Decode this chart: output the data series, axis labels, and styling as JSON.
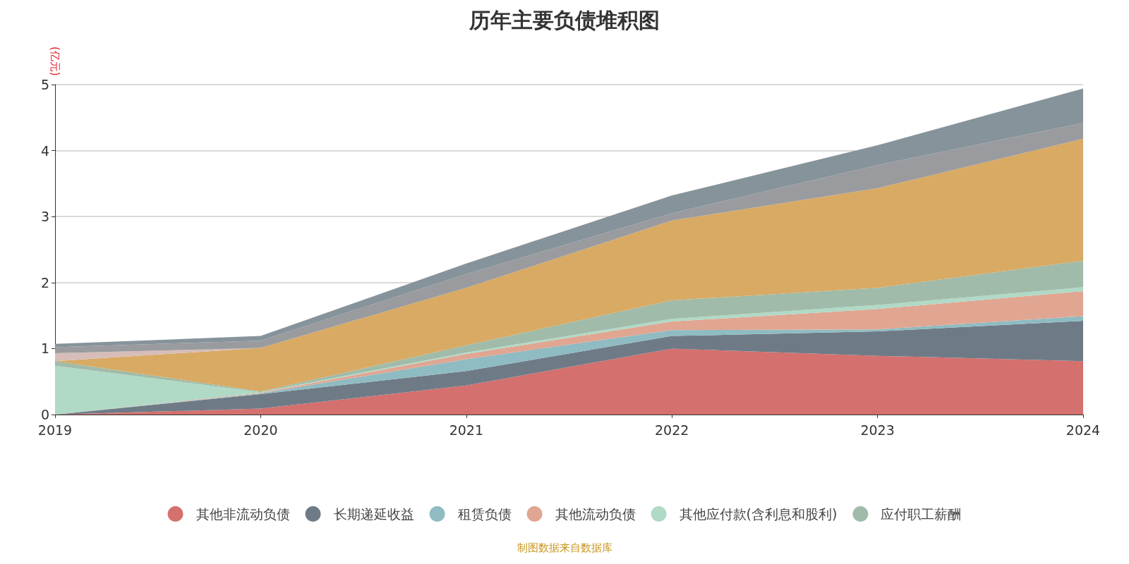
{
  "chart_data": {
    "type": "area",
    "title": "历年主要负债堆积图",
    "ylabel": "(亿元)",
    "annotations": [
      "制图数据来自数据库"
    ],
    "categories": [
      "2019",
      "2020",
      "2021",
      "2022",
      "2023",
      "2024"
    ],
    "stacked": true,
    "ylim": [
      0,
      5
    ],
    "yticks": [
      0,
      1,
      2,
      3,
      4,
      5
    ],
    "grid": "y",
    "legend": "bottom",
    "series": [
      {
        "name": "其他非流动负债",
        "color": "#d4706e",
        "values": [
          0,
          0.09,
          0.44,
          1.0,
          0.89,
          0.81
        ]
      },
      {
        "name": "长期递延收益",
        "color": "#6e7b87",
        "values": [
          0,
          0.22,
          0.22,
          0.19,
          0.37,
          0.61
        ]
      },
      {
        "name": "租赁负债",
        "color": "#8fbbc2",
        "values": [
          0,
          0.01,
          0.18,
          0.09,
          0.03,
          0.07
        ]
      },
      {
        "name": "其他流动负债",
        "color": "#e0a692",
        "values": [
          0,
          0.01,
          0.08,
          0.13,
          0.31,
          0.38
        ]
      },
      {
        "name": "其他应付款(含利息和股利)",
        "color": "#b0d9c6",
        "values": [
          0.74,
          0.01,
          0.02,
          0.04,
          0.06,
          0.06
        ]
      },
      {
        "name": "应付职工薪酬",
        "color": "#a0bba9",
        "values": [
          0.07,
          0.01,
          0.11,
          0.28,
          0.26,
          0.4
        ]
      },
      {
        "color": "#d8aa64",
        "values": [
          0,
          0.66,
          0.87,
          1.21,
          1.51,
          1.85
        ]
      },
      {
        "color": "#d6bdb8",
        "values": [
          0.12,
          0,
          0,
          0,
          0,
          0
        ]
      },
      {
        "color": "#9a9b9f",
        "values": [
          0.09,
          0.11,
          0.21,
          0.11,
          0.35,
          0.24
        ]
      },
      {
        "color": "#86939a",
        "values": [
          0.05,
          0.07,
          0.16,
          0.27,
          0.3,
          0.52
        ]
      }
    ]
  }
}
